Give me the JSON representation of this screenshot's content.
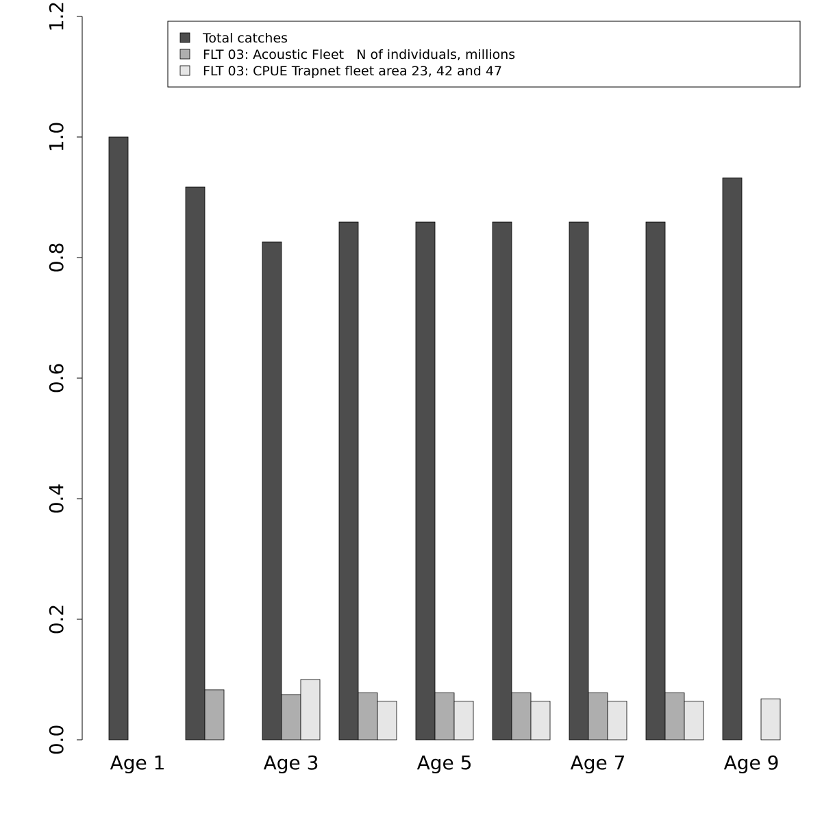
{
  "chart_data": {
    "type": "bar",
    "categories": [
      "Age 1",
      null,
      "Age 3",
      null,
      "Age 5",
      null,
      "Age 7",
      null,
      "Age 9"
    ],
    "series": [
      {
        "name": "Total catches",
        "color": "#4d4d4d",
        "values": [
          1.0,
          0.917,
          0.826,
          0.859,
          0.859,
          0.859,
          0.859,
          0.859,
          0.932
        ]
      },
      {
        "name": "FLT 03: Acoustic Fleet   N of individuals, millions",
        "color": "#aeaeae",
        "values": [
          0,
          0.083,
          0.075,
          0.078,
          0.078,
          0.078,
          0.078,
          0.078,
          0
        ]
      },
      {
        "name": "FLT 03: CPUE Trapnet fleet area 23, 42 and 47",
        "color": "#e6e6e6",
        "values": [
          0,
          0,
          0.1,
          0.064,
          0.064,
          0.064,
          0.064,
          0.064,
          0.068
        ]
      }
    ],
    "ylim": [
      0,
      1.2
    ],
    "yticks": [
      {
        "value": 0,
        "label": "0.0"
      },
      0.2,
      0.4,
      0.6,
      0.8,
      {
        "value": 1,
        "label": "1.0"
      },
      1.2
    ],
    "legend": "top-right"
  }
}
